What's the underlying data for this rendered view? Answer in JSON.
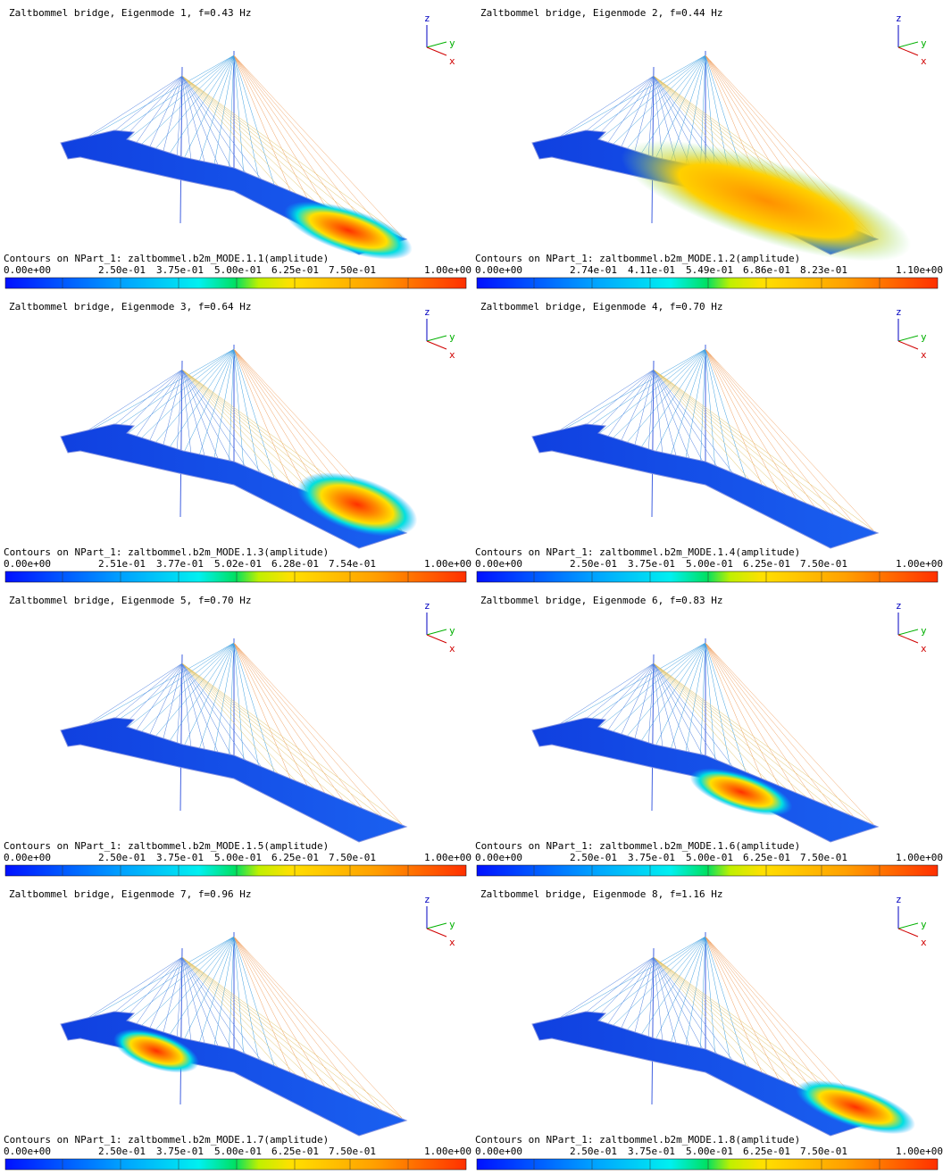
{
  "axis_labels": {
    "z": "z",
    "y": "y",
    "x": "x"
  },
  "panels": [
    {
      "title": "Zaltbommel bridge, Eigenmode 1, f=0.43 Hz",
      "contour_label": "Contours on NPart_1: zaltbommel.b2m_MODE.1.1(amplitude)",
      "scale_labels": [
        "0.00e+00",
        "2.50e-01",
        "3.75e-01",
        "5.00e-01",
        "6.25e-01",
        "7.50e-01",
        "1.00e+00"
      ]
    },
    {
      "title": "Zaltbommel bridge, Eigenmode 2, f=0.44 Hz",
      "contour_label": "Contours on NPart_1: zaltbommel.b2m_MODE.1.2(amplitude)",
      "scale_labels": [
        "0.00e+00",
        "2.74e-01",
        "4.11e-01",
        "5.49e-01",
        "6.86e-01",
        "8.23e-01",
        "1.10e+00"
      ]
    },
    {
      "title": "Zaltbommel bridge, Eigenmode 3, f=0.64 Hz",
      "contour_label": "Contours on NPart_1: zaltbommel.b2m_MODE.1.3(amplitude)",
      "scale_labels": [
        "0.00e+00",
        "2.51e-01",
        "3.77e-01",
        "5.02e-01",
        "6.28e-01",
        "7.54e-01",
        "1.00e+00"
      ]
    },
    {
      "title": "Zaltbommel bridge, Eigenmode 4, f=0.70 Hz",
      "contour_label": "Contours on NPart_1: zaltbommel.b2m_MODE.1.4(amplitude)",
      "scale_labels": [
        "0.00e+00",
        "2.50e-01",
        "3.75e-01",
        "5.00e-01",
        "6.25e-01",
        "7.50e-01",
        "1.00e+00"
      ]
    },
    {
      "title": "Zaltbommel bridge, Eigenmode 5, f=0.70 Hz",
      "contour_label": "Contours on NPart_1: zaltbommel.b2m_MODE.1.5(amplitude)",
      "scale_labels": [
        "0.00e+00",
        "2.50e-01",
        "3.75e-01",
        "5.00e-01",
        "6.25e-01",
        "7.50e-01",
        "1.00e+00"
      ]
    },
    {
      "title": "Zaltbommel bridge, Eigenmode 6, f=0.83 Hz",
      "contour_label": "Contours on NPart_1: zaltbommel.b2m_MODE.1.6(amplitude)",
      "scale_labels": [
        "0.00e+00",
        "2.50e-01",
        "3.75e-01",
        "5.00e-01",
        "6.25e-01",
        "7.50e-01",
        "1.00e+00"
      ]
    },
    {
      "title": "Zaltbommel bridge, Eigenmode 7, f=0.96 Hz",
      "contour_label": "Contours on NPart_1: zaltbommel.b2m_MODE.1.7(amplitude)",
      "scale_labels": [
        "0.00e+00",
        "2.50e-01",
        "3.75e-01",
        "5.00e-01",
        "6.25e-01",
        "7.50e-01",
        "1.00e+00"
      ]
    },
    {
      "title": "Zaltbommel bridge, Eigenmode 8, f=1.16 Hz",
      "contour_label": "Contours on NPart_1: zaltbommel.b2m_MODE.1.8(amplitude)",
      "scale_labels": [
        "0.00e+00",
        "2.50e-01",
        "3.75e-01",
        "5.00e-01",
        "6.25e-01",
        "7.50e-01",
        "1.00e+00"
      ]
    }
  ]
}
